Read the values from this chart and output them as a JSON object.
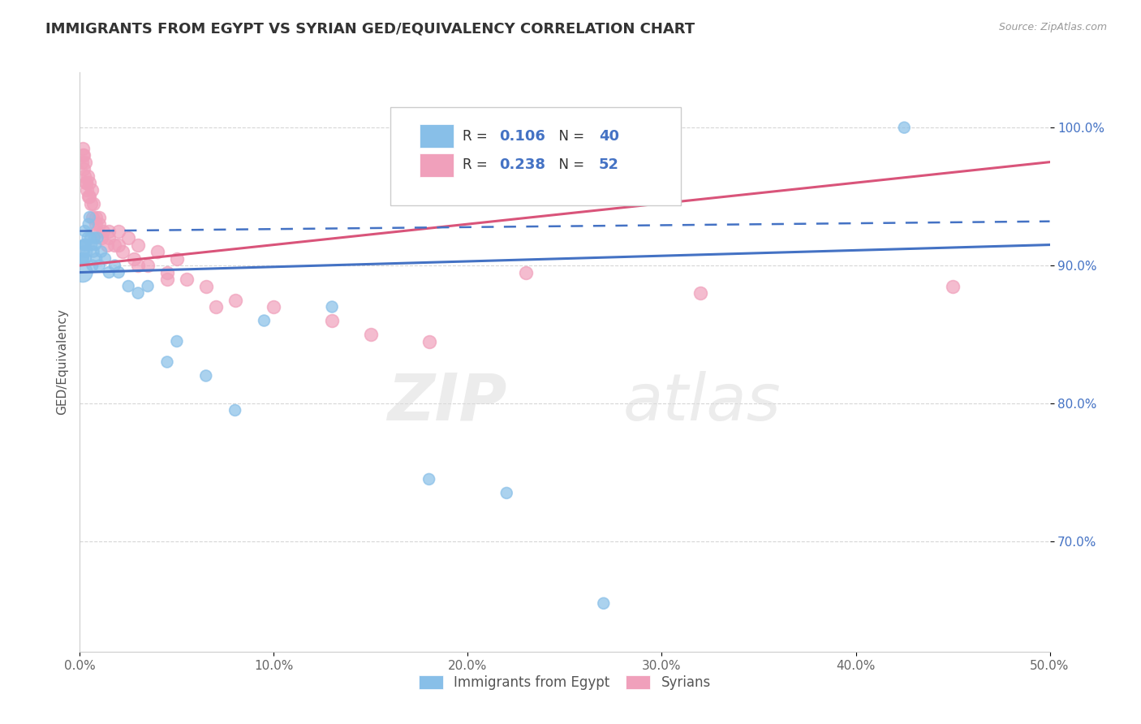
{
  "title": "IMMIGRANTS FROM EGYPT VS SYRIAN GED/EQUIVALENCY CORRELATION CHART",
  "source": "Source: ZipAtlas.com",
  "xlabel_vals": [
    0.0,
    10.0,
    20.0,
    30.0,
    40.0,
    50.0
  ],
  "ylabel_vals": [
    70.0,
    80.0,
    90.0,
    100.0
  ],
  "xlim": [
    0.0,
    50.0
  ],
  "ylim": [
    62.0,
    104.0
  ],
  "egypt_R": "0.106",
  "egypt_N": "40",
  "syria_R": "0.238",
  "syria_N": "52",
  "egypt_color": "#88BFE8",
  "syria_color": "#F0A0BB",
  "egypt_line_color": "#4472C4",
  "syria_line_color": "#D9547A",
  "egypt_dash_color": "#4472C4",
  "egypt_scatter_x": [
    0.15,
    0.18,
    0.2,
    0.22,
    0.25,
    0.28,
    0.3,
    0.35,
    0.4,
    0.45,
    0.5,
    0.55,
    0.6,
    0.65,
    0.7,
    0.75,
    0.8,
    0.85,
    0.9,
    1.0,
    1.1,
    1.3,
    1.5,
    1.8,
    2.0,
    2.5,
    3.0,
    3.5,
    4.5,
    5.0,
    6.5,
    8.0,
    9.5,
    13.0,
    18.0,
    22.0,
    27.0,
    42.5,
    0.12,
    0.25
  ],
  "egypt_scatter_y": [
    89.5,
    90.5,
    91.0,
    91.5,
    92.5,
    91.5,
    90.5,
    91.0,
    92.0,
    93.0,
    93.5,
    92.0,
    91.5,
    90.0,
    91.0,
    92.0,
    91.5,
    90.5,
    92.0,
    90.0,
    91.0,
    90.5,
    89.5,
    90.0,
    89.5,
    88.5,
    88.0,
    88.5,
    83.0,
    84.5,
    82.0,
    79.5,
    86.0,
    87.0,
    74.5,
    73.5,
    65.5,
    100.0,
    90.5,
    91.5
  ],
  "egypt_scatter_size": [
    300,
    100,
    100,
    100,
    100,
    100,
    100,
    100,
    100,
    100,
    100,
    100,
    100,
    100,
    100,
    100,
    100,
    100,
    100,
    100,
    100,
    100,
    100,
    100,
    100,
    100,
    100,
    100,
    100,
    100,
    100,
    100,
    100,
    100,
    100,
    100,
    100,
    100,
    100,
    100
  ],
  "syria_scatter_x": [
    0.1,
    0.15,
    0.18,
    0.2,
    0.25,
    0.28,
    0.3,
    0.35,
    0.4,
    0.45,
    0.5,
    0.55,
    0.6,
    0.65,
    0.7,
    0.8,
    0.9,
    1.0,
    1.1,
    1.2,
    1.4,
    1.5,
    1.8,
    2.0,
    2.2,
    2.5,
    2.8,
    3.0,
    3.5,
    4.0,
    4.5,
    5.0,
    5.5,
    6.5,
    8.0,
    10.0,
    13.0,
    18.0,
    23.0,
    32.0,
    45.0,
    0.15,
    0.3,
    0.5,
    0.8,
    1.0,
    1.5,
    2.0,
    3.0,
    4.5,
    7.0,
    15.0
  ],
  "syria_scatter_y": [
    97.5,
    98.5,
    97.0,
    98.0,
    96.5,
    97.5,
    96.0,
    95.5,
    96.5,
    95.0,
    96.0,
    94.5,
    95.5,
    93.5,
    94.5,
    93.0,
    92.5,
    93.5,
    92.0,
    92.5,
    91.5,
    92.0,
    91.5,
    92.5,
    91.0,
    92.0,
    90.5,
    91.5,
    90.0,
    91.0,
    89.5,
    90.5,
    89.0,
    88.5,
    87.5,
    87.0,
    86.0,
    84.5,
    89.5,
    88.0,
    88.5,
    98.0,
    96.0,
    95.0,
    93.5,
    93.0,
    92.5,
    91.5,
    90.0,
    89.0,
    87.0,
    85.0
  ],
  "egypt_line_x0": 0.0,
  "egypt_line_x1": 50.0,
  "egypt_line_y0": 89.5,
  "egypt_line_y1": 91.5,
  "egypt_dash_x0": 0.0,
  "egypt_dash_x1": 50.0,
  "egypt_dash_y0": 92.5,
  "egypt_dash_y1": 93.2,
  "syria_line_x0": 0.0,
  "syria_line_x1": 50.0,
  "syria_line_y0": 90.0,
  "syria_line_y1": 97.5,
  "watermark_zip": "ZIP",
  "watermark_atlas": "atlas",
  "legend_egypt_label": "Immigrants from Egypt",
  "legend_syria_label": "Syrians",
  "ylabel": "GED/Equivalency"
}
